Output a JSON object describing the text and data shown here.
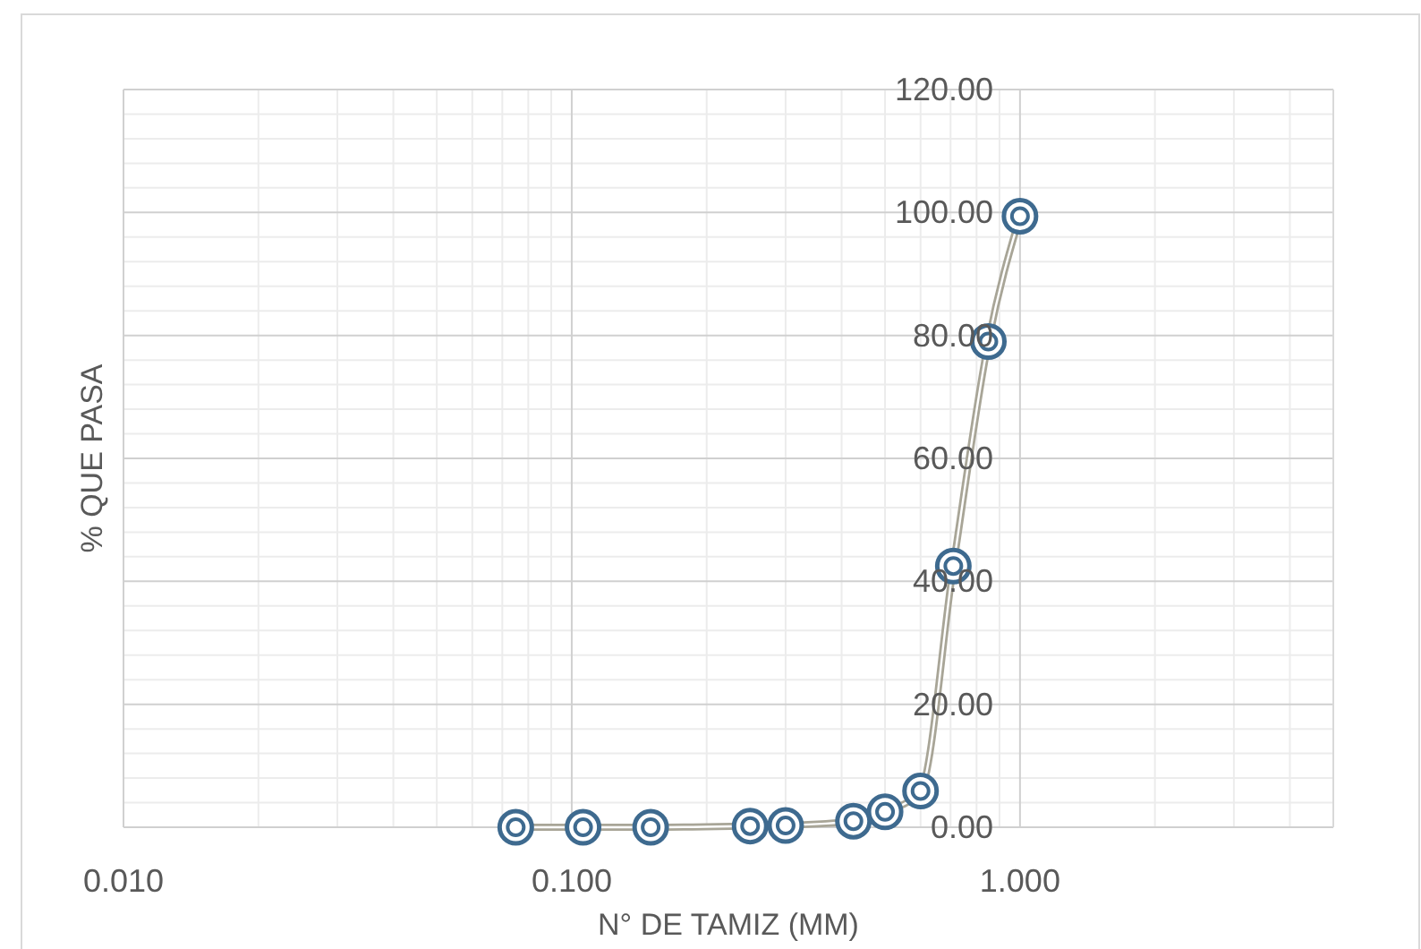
{
  "chart_data": {
    "type": "line",
    "xlabel": "N° DE TAMIZ (MM)",
    "ylabel": "% QUE PASA",
    "log": "x",
    "grid": true,
    "marker": "circle",
    "line_style": "solid",
    "xlim": [
      0.01,
      5
    ],
    "xticks": [
      {
        "value": 0.01,
        "label": "0.010"
      },
      {
        "value": 0.1,
        "label": "0.100"
      },
      {
        "value": 1,
        "label": "1.000"
      }
    ],
    "ylim": [
      0,
      120
    ],
    "yticks": [
      {
        "value": 0,
        "label": "0.00"
      },
      {
        "value": 20,
        "label": "20.00"
      },
      {
        "value": 40,
        "label": "40.00"
      },
      {
        "value": 60,
        "label": "60.00"
      },
      {
        "value": 80,
        "label": "80.00"
      },
      {
        "value": 100,
        "label": "100.00"
      },
      {
        "value": 120,
        "label": "120.00"
      }
    ],
    "series": [
      {
        "color": "#3e6a8f",
        "x": [
          0.075,
          0.106,
          0.15,
          0.25,
          0.3,
          0.425,
          0.5,
          0.6,
          0.71,
          0.85,
          1.0
        ],
        "values": [
          0,
          0,
          0,
          0.2,
          0.3,
          1.0,
          2.5,
          5.9,
          42.5,
          79.0,
          99.4
        ]
      }
    ]
  }
}
